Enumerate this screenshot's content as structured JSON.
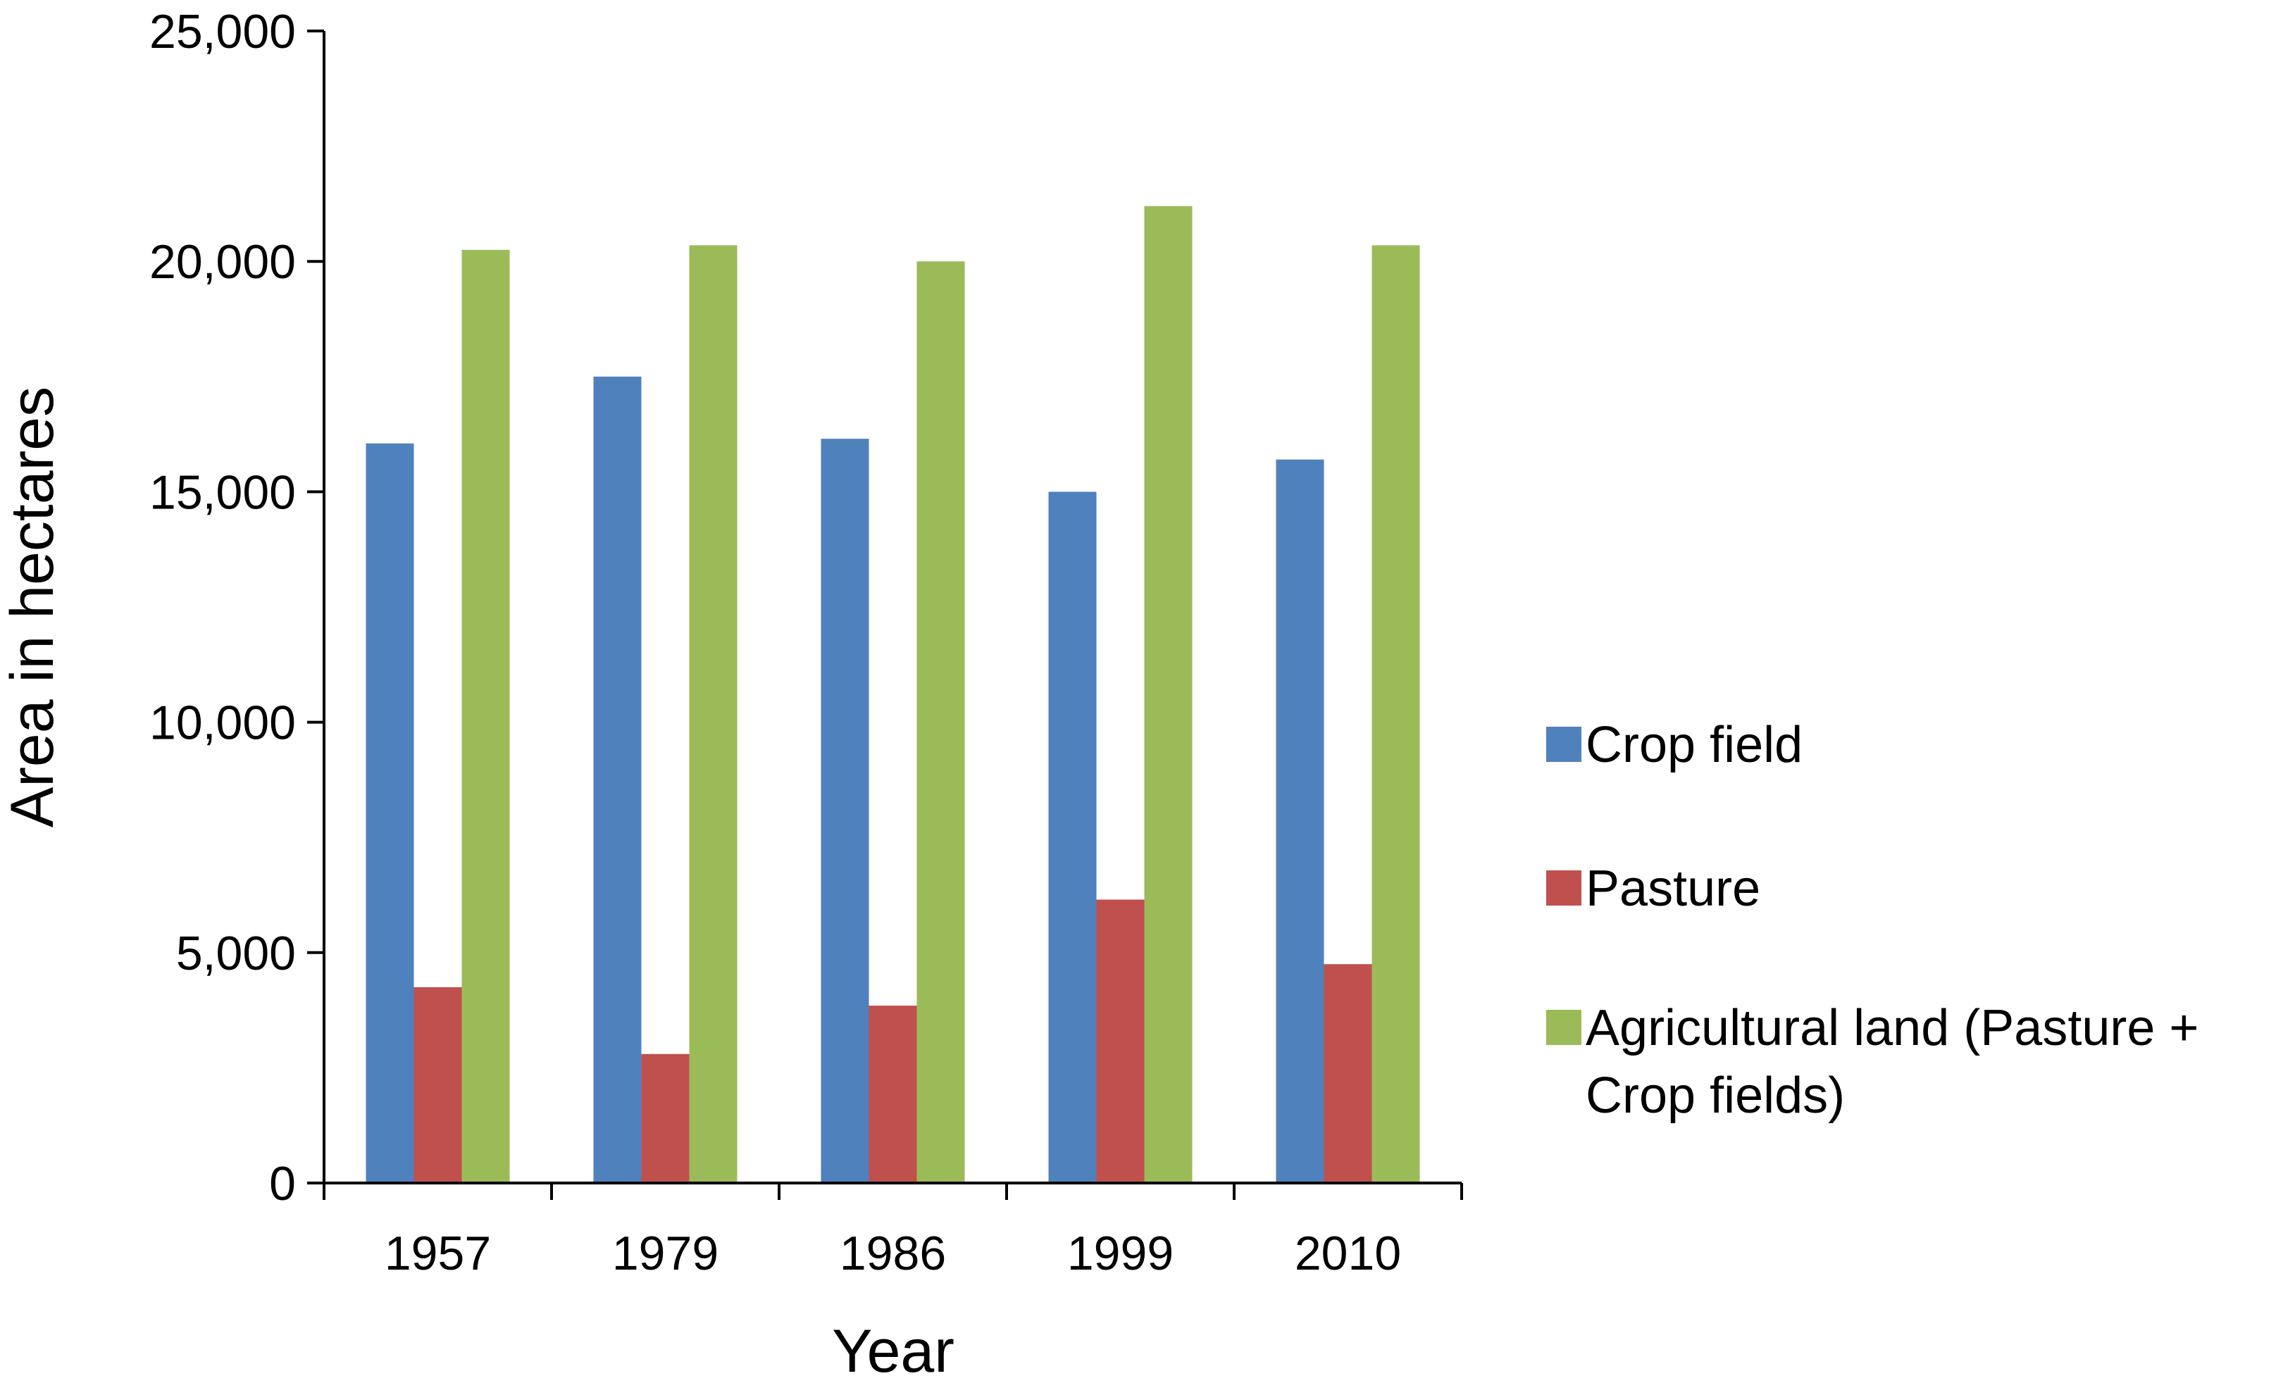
{
  "chart_data": {
    "type": "bar",
    "title": "",
    "xlabel": "Year",
    "ylabel": "Area in hectares",
    "categories": [
      "1957",
      "1979",
      "1986",
      "1999",
      "2010"
    ],
    "ylim": [
      0,
      25000
    ],
    "yticks": [
      0,
      5000,
      10000,
      15000,
      20000,
      25000
    ],
    "ytick_labels": [
      "0",
      "5,000",
      "10,000",
      "15,000",
      "20,000",
      "25,000"
    ],
    "grid": false,
    "legend_position": "right",
    "series": [
      {
        "name": "Crop field",
        "color": "#4f81bd",
        "values": [
          16050,
          17500,
          16150,
          15000,
          15700
        ]
      },
      {
        "name": "Pasture",
        "color": "#c0504d",
        "values": [
          4250,
          2800,
          3850,
          6150,
          4750
        ]
      },
      {
        "name": "Agricultural land (Pasture + Crop fields)",
        "legend_lines": [
          "Agricultural land (Pasture +",
          "Crop fields)"
        ],
        "color": "#9bbb59",
        "values": [
          20250,
          20350,
          20000,
          21200,
          20350
        ]
      }
    ]
  }
}
